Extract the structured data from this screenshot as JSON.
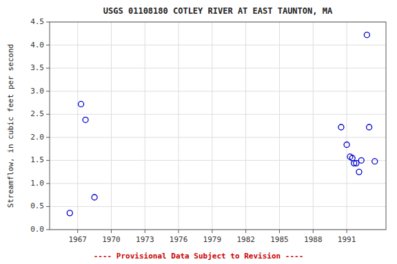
{
  "chart_data": {
    "type": "scatter",
    "title": "USGS 01108180 COTLEY RIVER AT EAST TAUNTON, MA",
    "ylabel": "Streamflow, in cubic feet per second",
    "annotations": [
      {
        "text": "---- Provisional Data Subject to Revision ----",
        "color": "#cc0000"
      }
    ],
    "x": [
      1966.3,
      1967.3,
      1967.7,
      1968.5,
      1990.5,
      1991.0,
      1991.3,
      1991.5,
      1991.65,
      1991.85,
      1992.1,
      1992.3,
      1992.8,
      1993.0,
      1993.5
    ],
    "values": [
      0.36,
      2.72,
      2.38,
      0.7,
      2.22,
      1.84,
      1.58,
      1.55,
      1.44,
      1.44,
      1.25,
      1.5,
      4.22,
      2.22,
      1.48
    ],
    "color": "#0000CC",
    "marker": "open-circle",
    "xlim": [
      1964.5,
      1994.5
    ],
    "ylim": [
      0.0,
      4.5
    ],
    "xticks": [
      1967,
      1970,
      1973,
      1976,
      1979,
      1982,
      1985,
      1988,
      1991
    ],
    "yticks": [
      {
        "value": 0.0,
        "label": "0.0"
      },
      0.5,
      {
        "value": 1.0,
        "label": "1.0"
      },
      1.5,
      {
        "value": 2.0,
        "label": "2.0"
      },
      2.5,
      {
        "value": 3.0,
        "label": "3.0"
      },
      3.5,
      {
        "value": 4.0,
        "label": "4.0"
      },
      4.5
    ],
    "grid": true
  }
}
